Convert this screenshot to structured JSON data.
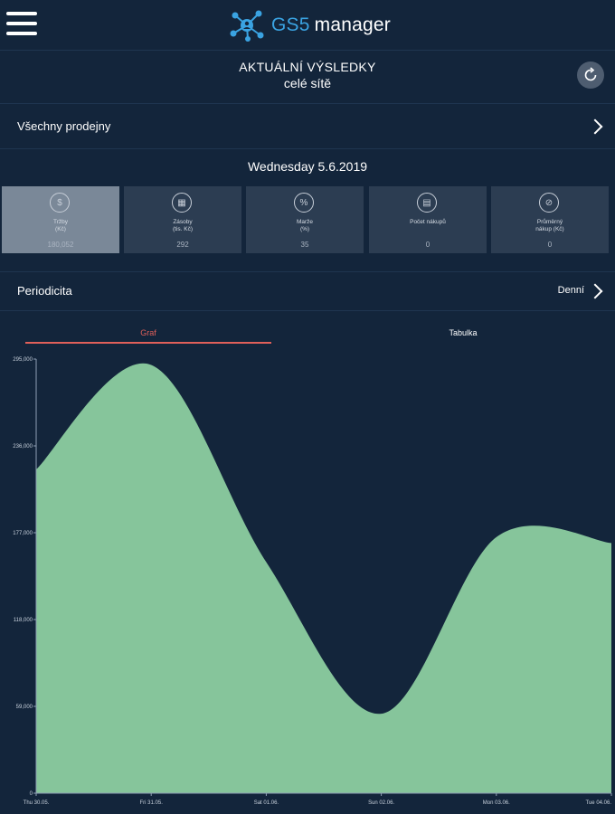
{
  "header": {
    "menu_icon": "hamburger-icon",
    "logo_icon": "network-nodes-icon",
    "brand_part1": "GS5",
    "brand_part2": "manager"
  },
  "page": {
    "title": "AKTUÁLNÍ VÝSLEDKY",
    "subtitle": "celé sítě",
    "refresh_icon": "refresh-icon"
  },
  "store_selector": {
    "label": "Všechny prodejny"
  },
  "date": "Wednesday 5.6.2019",
  "tiles": [
    {
      "icon": "dollar-icon",
      "glyph": "$",
      "label": "Tržby\n(Kč)",
      "value": "180,052",
      "active": true
    },
    {
      "icon": "calendar-icon",
      "glyph": "▦",
      "label": "Zásoby\n(tis. Kč)",
      "value": "292",
      "active": false
    },
    {
      "icon": "percent-icon",
      "glyph": "%",
      "label": "Marže\n(%)",
      "value": "35",
      "active": false
    },
    {
      "icon": "receipt-icon",
      "glyph": "▤",
      "label": "Počet nákupů",
      "value": "0",
      "active": false
    },
    {
      "icon": "average-icon",
      "glyph": "⊘",
      "label": "Průměrný\nnákup (Kč)",
      "value": "0",
      "active": false
    }
  ],
  "periodicity": {
    "label": "Periodicita",
    "value": "Denní"
  },
  "tabs": {
    "graph": "Graf",
    "table": "Tabulka"
  },
  "chart_data": {
    "type": "area",
    "x": [
      "Thu 30.05.",
      "Fri 31.05.",
      "Sat 01.06.",
      "Sun 02.06.",
      "Mon 03.06.",
      "Tue 04.06."
    ],
    "values": [
      220000,
      291000,
      157000,
      54000,
      174000,
      170000
    ],
    "yticks": [
      "295,000",
      "236,000",
      "177,000",
      "118,000",
      "59,000",
      "0"
    ],
    "ylim": [
      0,
      295000
    ],
    "fill_color": "#86c59b",
    "grid": false
  }
}
